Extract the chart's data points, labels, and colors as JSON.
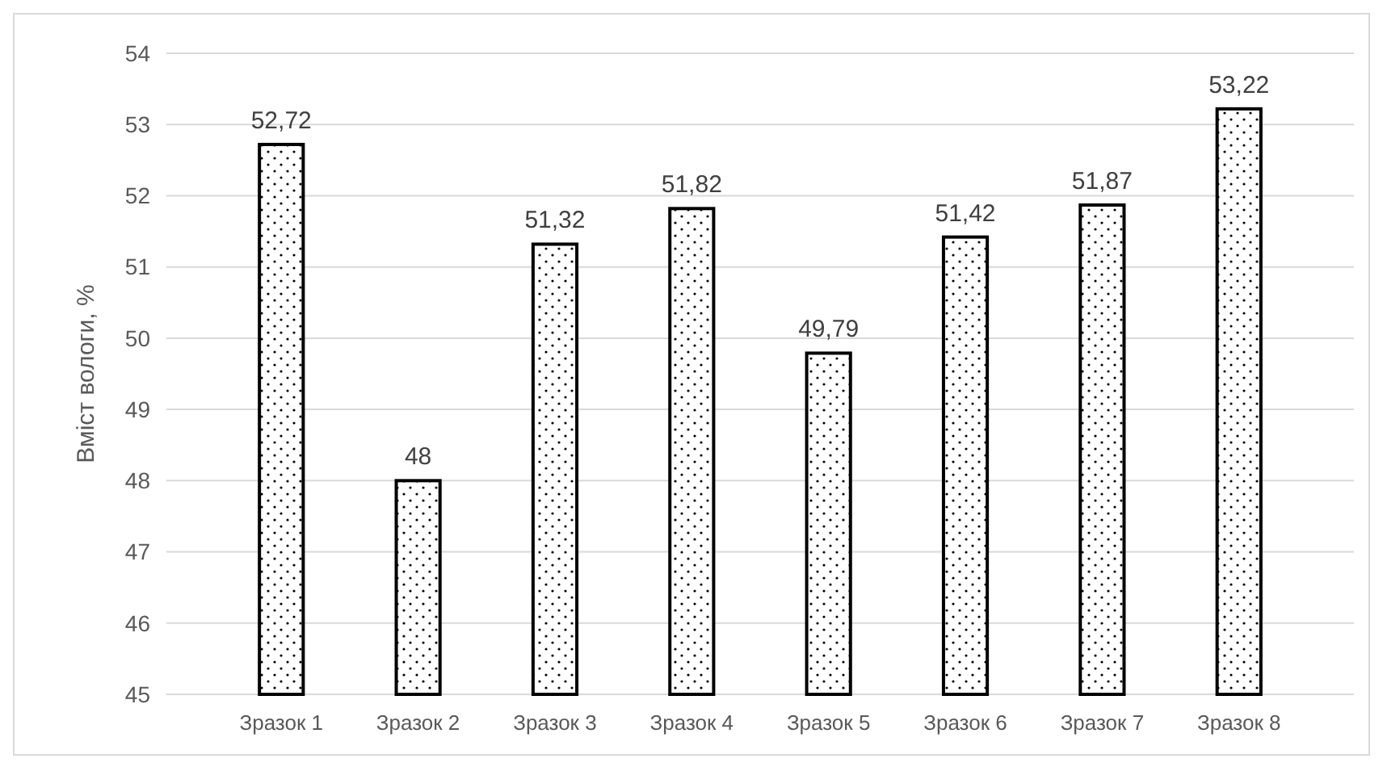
{
  "chart_data": {
    "type": "bar",
    "ylabel": "Вміст вологи, %",
    "categories": [
      "Зразок 1",
      "Зразок 2",
      "Зразок 3",
      "Зразок 4",
      "Зразок 5",
      "Зразок 6",
      "Зразок 7",
      "Зразок 8"
    ],
    "values": [
      52.72,
      48,
      51.32,
      51.82,
      49.79,
      51.42,
      51.87,
      53.22
    ],
    "value_labels": [
      "52,72",
      "48",
      "51,32",
      "51,82",
      "49,79",
      "51,42",
      "51,87",
      "53,22"
    ],
    "color": "#000000",
    "ylim": [
      45,
      54
    ],
    "yticks": [
      45,
      46,
      47,
      48,
      49,
      50,
      51,
      52,
      53,
      54
    ],
    "grid": "y"
  }
}
